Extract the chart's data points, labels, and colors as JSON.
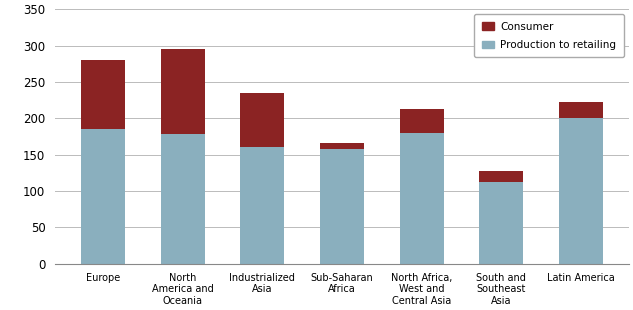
{
  "categories": [
    "Europe",
    "North\nAmerica and\nOceania",
    "Industrialized\nAsia",
    "Sub-Saharan\nAfrica",
    "North Africa,\nWest and\nCentral Asia",
    "South and\nSoutheast\nAsia",
    "Latin America"
  ],
  "production_to_retail": [
    185,
    178,
    160,
    158,
    180,
    112,
    200
  ],
  "consumer": [
    95,
    117,
    75,
    8,
    33,
    15,
    22
  ],
  "production_color": "#8AAFBE",
  "consumer_color": "#8B2323",
  "ylim": [
    0,
    350
  ],
  "yticks": [
    0,
    50,
    100,
    150,
    200,
    250,
    300,
    350
  ],
  "legend_labels": [
    "Consumer",
    "Production to retailing"
  ],
  "background_color": "#ffffff",
  "grid_color": "#bbbbbb",
  "bar_width": 0.55,
  "figsize": [
    6.33,
    3.1
  ],
  "dpi": 100
}
